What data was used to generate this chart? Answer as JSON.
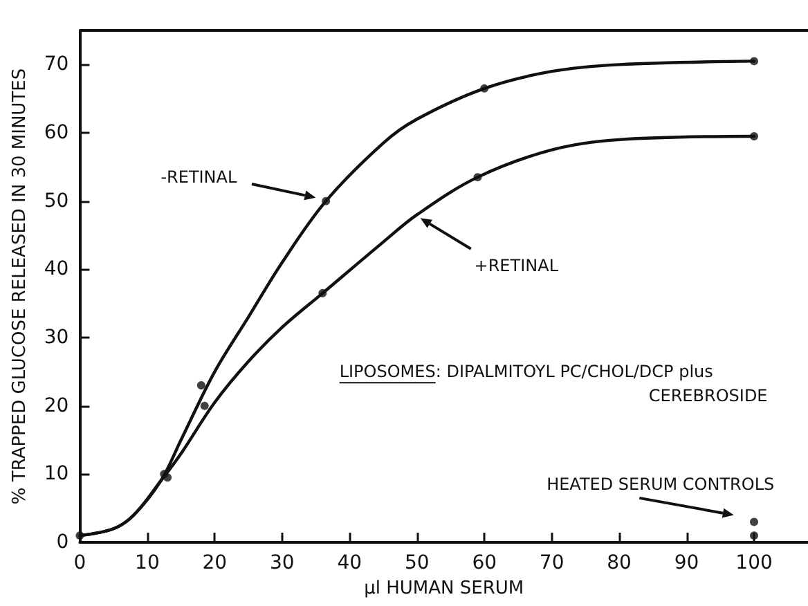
{
  "chart_data": {
    "type": "line",
    "xlabel": "μl HUMAN SERUM",
    "ylabel": "% TRAPPED GLUCOSE RELEASED IN 30 MINUTES",
    "xlim": [
      0,
      108
    ],
    "ylim": [
      0,
      75
    ],
    "xticks": [
      0,
      10,
      20,
      30,
      40,
      50,
      60,
      70,
      80,
      90,
      100
    ],
    "yticks": [
      0,
      10,
      20,
      30,
      40,
      50,
      60,
      70
    ],
    "grid": false,
    "color": "#111111",
    "series": [
      {
        "marker": "none",
        "x": [
          0,
          5,
          8,
          12,
          15,
          20,
          25,
          30,
          36.5,
          45,
          50,
          60,
          70,
          80,
          100
        ],
        "values": [
          1,
          2,
          4,
          9,
          15,
          25,
          33,
          41,
          50,
          58.5,
          62,
          66.5,
          69,
          70,
          70.5
        ]
      },
      {
        "marker": "none",
        "x": [
          0,
          5,
          8,
          12,
          15,
          20,
          25,
          30,
          36,
          45,
          50,
          59,
          70,
          80,
          100
        ],
        "values": [
          1,
          2,
          4,
          9,
          13,
          20.5,
          26.5,
          31.5,
          36.5,
          44,
          48,
          53.5,
          57.5,
          59,
          59.5
        ]
      },
      {
        "type": "scatter",
        "marker": "circle",
        "x": [
          0,
          12.5,
          18,
          36.5,
          60,
          100
        ],
        "values": [
          1,
          10,
          23,
          50,
          66.5,
          70.5
        ]
      },
      {
        "type": "scatter",
        "marker": "circle",
        "x": [
          13,
          18.5,
          36,
          59,
          100
        ],
        "values": [
          9.5,
          20,
          36.5,
          53.5,
          59.5
        ]
      },
      {
        "type": "scatter",
        "marker": "circle",
        "x": [
          100,
          100
        ],
        "values": [
          3,
          1
        ]
      }
    ],
    "annotations": [
      {
        "text": "-RETINAL",
        "x": 35,
        "y": 50.5
      },
      {
        "text": "+RETINAL",
        "x": 50.5,
        "y": 47.5
      },
      "LIPOSOMES: DIPALMITOYL PC/CHOL/DCP plus\nCEREBROSIDE",
      "HEATED SERUM CONTROLS"
    ]
  }
}
